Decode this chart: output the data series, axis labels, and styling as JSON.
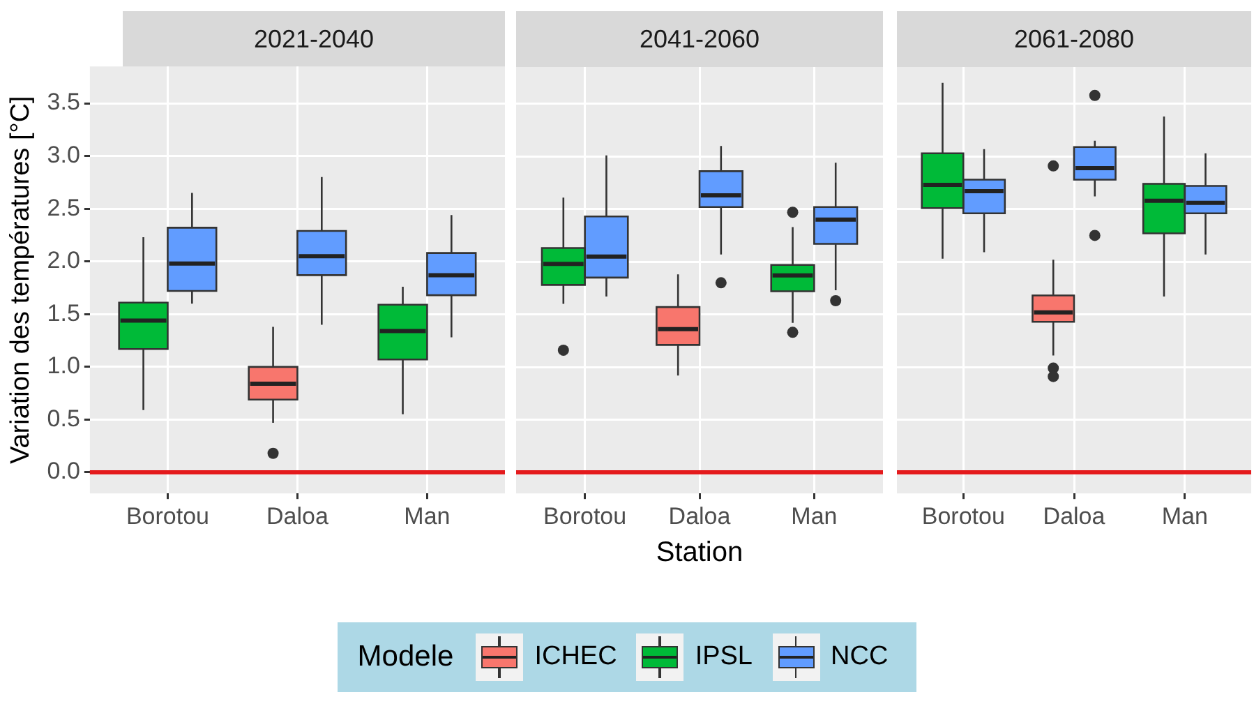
{
  "chart_data": [
    {
      "type": "box",
      "title": "2021-2040",
      "ylabel": "Variation des températures [°C]",
      "categories": [
        "Borotou",
        "Daloa",
        "Man"
      ],
      "ylim": [
        -0.2,
        3.85
      ],
      "yticks": [
        {
          "value": 0,
          "label": "0.0"
        },
        {
          "value": 0.5,
          "label": "0.5"
        },
        {
          "value": 1,
          "label": "1.0"
        },
        {
          "value": 1.5,
          "label": "1.5"
        },
        {
          "value": 2,
          "label": "2.0"
        },
        {
          "value": 2.5,
          "label": "2.5"
        },
        {
          "value": 3,
          "label": "3.0"
        },
        {
          "value": 3.5,
          "label": "3.5"
        }
      ],
      "grid": true,
      "legend": "bottom",
      "legend_title": "Modele",
      "ref_lines": [
        {
          "axis": "y",
          "value": 0,
          "color": "#e41a1c"
        }
      ],
      "series": [
        {
          "name": "ICHEC",
          "color": "#f8766d",
          "boxes": [
            null,
            {
              "low": 0.47,
              "q1": 0.69,
              "median": 0.84,
              "q3": 1.0,
              "high": 1.38,
              "outliers": [
                0.18
              ]
            },
            null
          ]
        },
        {
          "name": "IPSL",
          "color": "#00ba38",
          "boxes": [
            {
              "low": 0.59,
              "q1": 1.17,
              "median": 1.44,
              "q3": 1.61,
              "high": 2.23
            },
            null,
            {
              "low": 0.55,
              "q1": 1.07,
              "median": 1.34,
              "q3": 1.59,
              "high": 1.76
            }
          ]
        },
        {
          "name": "NCC",
          "color": "#619cff",
          "boxes": [
            {
              "low": 1.6,
              "q1": 1.72,
              "median": 1.98,
              "q3": 2.32,
              "high": 2.65
            },
            {
              "low": 1.4,
              "q1": 1.87,
              "median": 2.05,
              "q3": 2.29,
              "high": 2.8
            },
            {
              "low": 1.28,
              "q1": 1.68,
              "median": 1.87,
              "q3": 2.08,
              "high": 2.44
            }
          ]
        }
      ]
    },
    {
      "type": "box",
      "title": "2041-2060",
      "xlabel": "Station",
      "categories": [
        "Borotou",
        "Daloa",
        "Man"
      ],
      "ylim": [
        -0.2,
        3.85
      ],
      "yticks": [
        {
          "value": 0,
          "label": null
        },
        {
          "value": 0.5,
          "label": null
        },
        {
          "value": 1,
          "label": null
        },
        {
          "value": 1.5,
          "label": null
        },
        {
          "value": 2,
          "label": null
        },
        {
          "value": 2.5,
          "label": null
        },
        {
          "value": 3,
          "label": null
        },
        {
          "value": 3.5,
          "label": null
        }
      ],
      "grid": true,
      "tick_labels": "x",
      "ref_lines": [
        {
          "axis": "y",
          "value": 0,
          "color": "#e41a1c"
        }
      ],
      "series": [
        {
          "color": "#f8766d",
          "boxes": [
            null,
            {
              "low": 0.92,
              "q1": 1.21,
              "median": 1.36,
              "q3": 1.57,
              "high": 1.88
            },
            null
          ]
        },
        {
          "color": "#00ba38",
          "boxes": [
            {
              "low": 1.6,
              "q1": 1.78,
              "median": 1.98,
              "q3": 2.13,
              "high": 2.61,
              "outliers": [
                1.16
              ]
            },
            null,
            {
              "low": 1.42,
              "q1": 1.72,
              "median": 1.87,
              "q3": 1.97,
              "high": 2.33,
              "outliers": [
                2.47,
                1.33
              ]
            }
          ]
        },
        {
          "color": "#619cff",
          "boxes": [
            {
              "low": 1.67,
              "q1": 1.85,
              "median": 2.05,
              "q3": 2.43,
              "high": 3.01
            },
            {
              "low": 2.07,
              "q1": 2.52,
              "median": 2.63,
              "q3": 2.86,
              "high": 3.1,
              "outliers": [
                1.8
              ]
            },
            {
              "low": 1.73,
              "q1": 2.17,
              "median": 2.4,
              "q3": 2.52,
              "high": 2.94,
              "outliers": [
                1.63
              ]
            }
          ]
        }
      ]
    },
    {
      "type": "box",
      "title": "2061-2080",
      "categories": [
        "Borotou",
        "Daloa",
        "Man"
      ],
      "ylim": [
        -0.2,
        3.85
      ],
      "yticks": [
        {
          "value": 0,
          "label": null
        },
        {
          "value": 0.5,
          "label": null
        },
        {
          "value": 1,
          "label": null
        },
        {
          "value": 1.5,
          "label": null
        },
        {
          "value": 2,
          "label": null
        },
        {
          "value": 2.5,
          "label": null
        },
        {
          "value": 3,
          "label": null
        },
        {
          "value": 3.5,
          "label": null
        }
      ],
      "grid": true,
      "tick_labels": "x",
      "ref_lines": [
        {
          "axis": "y",
          "value": 0,
          "color": "#e41a1c"
        }
      ],
      "series": [
        {
          "color": "#f8766d",
          "boxes": [
            null,
            {
              "low": 1.11,
              "q1": 1.43,
              "median": 1.52,
              "q3": 1.68,
              "high": 2.02,
              "outliers": [
                2.91,
                0.99,
                0.91
              ]
            },
            null
          ]
        },
        {
          "color": "#00ba38",
          "boxes": [
            {
              "low": 2.03,
              "q1": 2.51,
              "median": 2.73,
              "q3": 3.03,
              "high": 3.7
            },
            null,
            {
              "low": 1.67,
              "q1": 2.27,
              "median": 2.58,
              "q3": 2.74,
              "high": 3.38
            }
          ]
        },
        {
          "color": "#619cff",
          "boxes": [
            {
              "low": 2.09,
              "q1": 2.46,
              "median": 2.67,
              "q3": 2.78,
              "high": 3.07
            },
            {
              "low": 2.62,
              "q1": 2.78,
              "median": 2.89,
              "q3": 3.09,
              "high": 3.15,
              "outliers": [
                3.58,
                2.25
              ]
            },
            {
              "low": 2.07,
              "q1": 2.46,
              "median": 2.56,
              "q3": 2.72,
              "high": 3.03
            }
          ]
        }
      ]
    }
  ]
}
